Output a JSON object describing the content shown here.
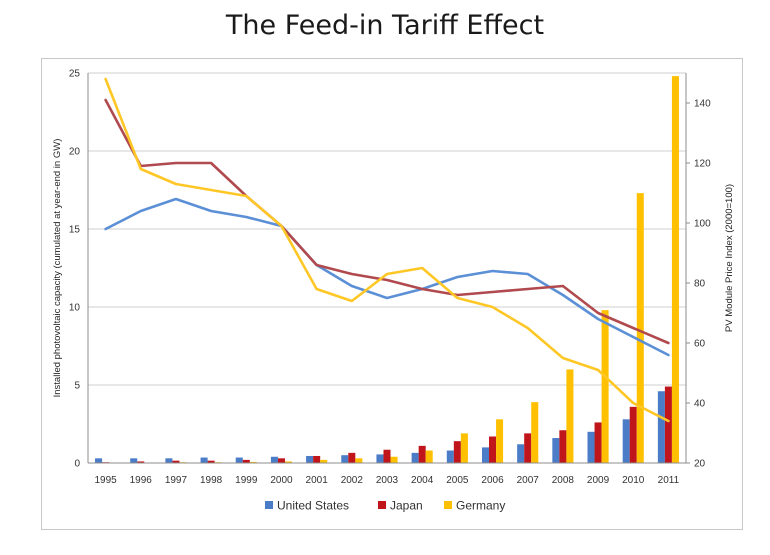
{
  "title": "The Feed-in Tariff Effect",
  "colors": {
    "united_states": "#4a7cc8",
    "japan": "#c0161b",
    "germany": "#ffc000",
    "us_price_line": "#5b8fd6",
    "japan_price_line": "#b04a4e",
    "germany_price_line": "#ffc726",
    "grid": "#cfcfcf"
  },
  "chart_data": {
    "type": "bar",
    "title": "The Feed-in Tariff Effect",
    "categories": [
      "1995",
      "1996",
      "1997",
      "1998",
      "1999",
      "2000",
      "2001",
      "2002",
      "2003",
      "2004",
      "2005",
      "2006",
      "2007",
      "2008",
      "2009",
      "2010",
      "2011"
    ],
    "ylabel": "Installed photovoltaic capacity (cumulated at year-end in GW)",
    "ylim": [
      0,
      25
    ],
    "yticks": [
      "0",
      "5",
      "10",
      "15",
      "20",
      "25"
    ],
    "y2label": "PV Module Price Index (2000=100)",
    "y2lim": [
      20,
      150
    ],
    "y2ticks": [
      "20",
      "40",
      "60",
      "80",
      "100",
      "120",
      "140"
    ],
    "grid": true,
    "legend_position": "bottom",
    "series": [
      {
        "name": "United States",
        "values": [
          0.3,
          0.3,
          0.3,
          0.35,
          0.35,
          0.4,
          0.45,
          0.5,
          0.55,
          0.65,
          0.8,
          1.0,
          1.2,
          1.6,
          2.0,
          2.8,
          4.6
        ]
      },
      {
        "name": "Japan",
        "values": [
          0.05,
          0.1,
          0.15,
          0.15,
          0.2,
          0.3,
          0.45,
          0.65,
          0.85,
          1.1,
          1.4,
          1.7,
          1.9,
          2.1,
          2.6,
          3.6,
          4.9
        ]
      },
      {
        "name": "Germany",
        "values": [
          0.02,
          0.03,
          0.05,
          0.05,
          0.07,
          0.1,
          0.2,
          0.3,
          0.4,
          0.8,
          1.9,
          2.8,
          3.9,
          6.0,
          9.8,
          17.3,
          24.8
        ]
      }
    ],
    "price_index_lines": [
      {
        "values": [
          98,
          104,
          108,
          104,
          102,
          99,
          86,
          79,
          75,
          78,
          82,
          84,
          83,
          76,
          68,
          62,
          56
        ]
      },
      {
        "values": [
          141,
          119,
          120,
          120,
          109,
          99,
          86,
          83,
          81,
          78,
          76,
          77,
          78,
          79,
          70,
          65,
          60
        ]
      },
      {
        "values": [
          148,
          118,
          113,
          111,
          109,
          99,
          78,
          74,
          83,
          85,
          75,
          72,
          65,
          55,
          51,
          40,
          34
        ]
      }
    ]
  }
}
